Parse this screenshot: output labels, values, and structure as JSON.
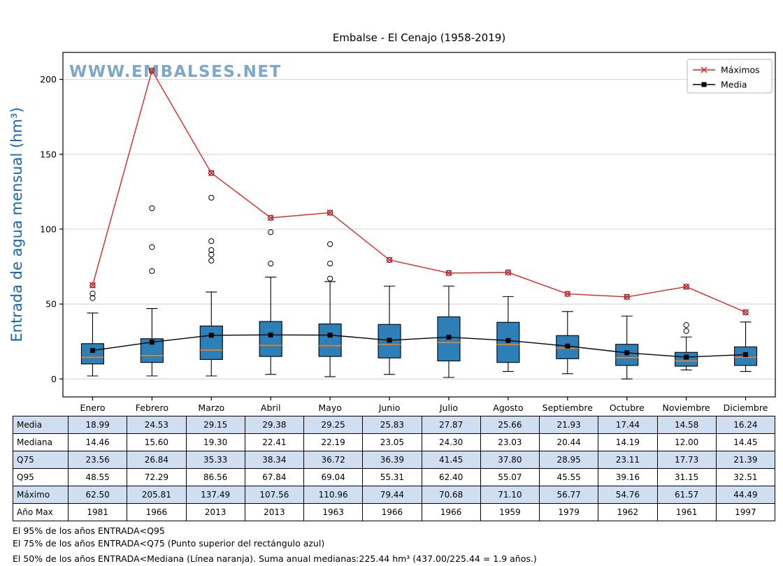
{
  "page": {
    "watermark": "WWW.EMBALSES.NET"
  },
  "chart_data": {
    "type": "boxplot",
    "title": "Embalse - El Cenajo (1958-2019)",
    "ylabel": "Entrada de agua mensual (hm³)",
    "ylim": [
      -12,
      218
    ],
    "yticks": [
      0,
      50,
      100,
      150,
      200
    ],
    "grid": "horizontal",
    "categories": [
      "Enero",
      "Febrero",
      "Marzo",
      "Abril",
      "Mayo",
      "Junio",
      "Julio",
      "Agosto",
      "Septiembre",
      "Octubre",
      "Noviembre",
      "Diciembre"
    ],
    "legend": {
      "position": "top-right",
      "entries": [
        {
          "label": "Máximos",
          "marker": "x",
          "color": "#e32222"
        },
        {
          "label": "Media",
          "marker": "square",
          "color": "#000000"
        }
      ]
    },
    "series": {
      "media": [
        18.99,
        24.53,
        29.15,
        29.38,
        29.25,
        25.83,
        27.87,
        25.66,
        21.93,
        17.44,
        14.58,
        16.24
      ],
      "mediana": [
        14.46,
        15.6,
        19.3,
        22.41,
        22.19,
        23.05,
        24.3,
        23.03,
        20.44,
        14.19,
        12.0,
        14.45
      ],
      "q75": [
        23.56,
        26.84,
        35.33,
        38.34,
        36.72,
        36.39,
        41.45,
        37.8,
        28.95,
        23.11,
        17.73,
        21.39
      ],
      "q95": [
        48.55,
        72.29,
        86.56,
        67.84,
        69.04,
        55.31,
        62.4,
        55.07,
        45.55,
        39.16,
        31.15,
        32.51
      ],
      "maximo": [
        62.5,
        205.81,
        137.49,
        107.56,
        110.96,
        79.44,
        70.68,
        71.1,
        56.77,
        54.76,
        61.57,
        44.49
      ],
      "anio_max": [
        1981,
        1966,
        2013,
        2013,
        1963,
        1966,
        1966,
        1959,
        1979,
        1962,
        1961,
        1997
      ]
    },
    "box_geometry_estimated": {
      "q1": [
        10,
        11,
        13,
        15,
        15,
        14,
        12,
        11,
        13.5,
        9,
        8.5,
        9
      ],
      "whisker_low": [
        2,
        2,
        2,
        3,
        1.5,
        3,
        1,
        5,
        3.5,
        0,
        6,
        5
      ],
      "whisker_high": [
        44,
        47,
        58,
        68,
        65,
        62,
        62,
        55,
        45,
        42,
        28,
        38
      ],
      "outliers": [
        [
          54,
          57,
          62.5
        ],
        [
          72,
          88,
          114,
          205.81
        ],
        [
          79,
          83,
          86,
          92,
          121,
          137.49
        ],
        [
          77,
          98,
          107.56
        ],
        [
          67,
          77,
          90,
          110.96
        ],
        [
          79.44
        ],
        [
          70.68
        ],
        [
          71.1
        ],
        [
          56.77
        ],
        [
          54.76
        ],
        [
          32,
          36,
          61.57
        ],
        [
          44.49
        ]
      ]
    },
    "colors": {
      "box_fill": "#2d7fb8",
      "median_line": "#ff7f0e",
      "max_line": "#e32222",
      "mean_line": "#000000",
      "watermark": "#6f9ec4",
      "ylabel": "#1467b0",
      "grid": "#d2d2d2",
      "table_shade": "#cfdff1"
    }
  },
  "table": {
    "rows": [
      {
        "label": "Media",
        "values": [
          "18.99",
          "24.53",
          "29.15",
          "29.38",
          "29.25",
          "25.83",
          "27.87",
          "25.66",
          "21.93",
          "17.44",
          "14.58",
          "16.24"
        ]
      },
      {
        "label": "Mediana",
        "values": [
          "14.46",
          "15.60",
          "19.30",
          "22.41",
          "22.19",
          "23.05",
          "24.30",
          "23.03",
          "20.44",
          "14.19",
          "12.00",
          "14.45"
        ]
      },
      {
        "label": "Q75",
        "values": [
          "23.56",
          "26.84",
          "35.33",
          "38.34",
          "36.72",
          "36.39",
          "41.45",
          "37.80",
          "28.95",
          "23.11",
          "17.73",
          "21.39"
        ]
      },
      {
        "label": "Q95",
        "values": [
          "48.55",
          "72.29",
          "86.56",
          "67.84",
          "69.04",
          "55.31",
          "62.40",
          "55.07",
          "45.55",
          "39.16",
          "31.15",
          "32.51"
        ]
      },
      {
        "label": "Máximo",
        "values": [
          "62.50",
          "205.81",
          "137.49",
          "107.56",
          "110.96",
          "79.44",
          "70.68",
          "71.10",
          "56.77",
          "54.76",
          "61.57",
          "44.49"
        ]
      },
      {
        "label": "Año Max",
        "values": [
          "1981",
          "1966",
          "2013",
          "2013",
          "1963",
          "1966",
          "1966",
          "1959",
          "1979",
          "1962",
          "1961",
          "1997"
        ]
      }
    ]
  },
  "footnotes": [
    "El 95% de los años ENTRADA<Q95",
    "El 75% de los años ENTRADA<Q75 (Punto superior del rectángulo azul)",
    "El 50% de los años ENTRADA<Mediana (Línea naranja). Suma anual medianas:225.44 hm³ (437.00/225.44 = 1.9 años.)"
  ]
}
